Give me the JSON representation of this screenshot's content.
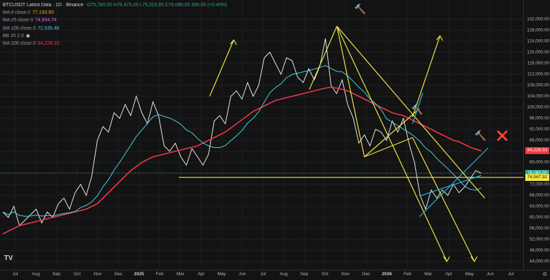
{
  "header": {
    "symbol": "BTCUSDT Latest Data",
    "interval": "1D",
    "exchange": "Binance",
    "open": "O75,780.00",
    "high": "H76,473.26",
    "low": "L75,323.65",
    "close": "C76,080.00",
    "change": "300.00 (+0.40%)"
  },
  "indicators": [
    {
      "name": "MA 8 close 0",
      "value": "77,193.90",
      "color": "#f7a12a"
    },
    {
      "name": "MA 25 close 0",
      "value": "74,934.74",
      "color": "#d46cf5"
    },
    {
      "name": "MA 100 close 0",
      "value": "72,535.48",
      "color": "#4fd1d9"
    },
    {
      "name": "BB 20 2 0",
      "value": "",
      "color": "#9598a1"
    },
    {
      "name": "MA 200 close 0",
      "value": "84,228.33",
      "color": "#f23645"
    }
  ],
  "price_axis": {
    "ticks": [
      "132,000.00",
      "128,000.00",
      "124,000.00",
      "120,000.00",
      "116,000.00",
      "112,000.00",
      "108,000.00",
      "104,000.00",
      "100,000.00",
      "96,000.00",
      "92,000.00",
      "88,000.00",
      "84,000.00",
      "80,000.00",
      "76,000.00",
      "72,000.00",
      "68,000.00",
      "64,000.00",
      "60,000.00",
      "56,000.00",
      "52,000.00",
      "48,000.00",
      "44,000.00"
    ],
    "tags": [
      {
        "label": "84,228.33",
        "value": 84228.33,
        "color": "#f23645"
      },
      {
        "label": "76,080.00",
        "value": 76080,
        "color": "#26a69a"
      },
      {
        "label": "74,547.92",
        "value": 74547.92,
        "color": "#f5e642",
        "text_color": "#131313"
      }
    ]
  },
  "time_axis": {
    "labels": [
      {
        "text": "Jul",
        "bold": false
      },
      {
        "text": "Aug",
        "bold": false
      },
      {
        "text": "Sep",
        "bold": false
      },
      {
        "text": "Oct",
        "bold": false
      },
      {
        "text": "Nov",
        "bold": false
      },
      {
        "text": "Dec",
        "bold": false
      },
      {
        "text": "2025",
        "bold": true
      },
      {
        "text": "Feb",
        "bold": false
      },
      {
        "text": "Mar",
        "bold": false
      },
      {
        "text": "Apr",
        "bold": false
      },
      {
        "text": "May",
        "bold": false
      },
      {
        "text": "Jun",
        "bold": false
      },
      {
        "text": "Jul",
        "bold": false
      },
      {
        "text": "Aug",
        "bold": false
      },
      {
        "text": "Sep",
        "bold": false
      },
      {
        "text": "Oct",
        "bold": false
      },
      {
        "text": "Nov",
        "bold": false
      },
      {
        "text": "Dec",
        "bold": false
      },
      {
        "text": "2026",
        "bold": true
      },
      {
        "text": "Feb",
        "bold": false
      },
      {
        "text": "Mar",
        "bold": false
      },
      {
        "text": "Apr",
        "bold": false
      },
      {
        "text": "May",
        "bold": false
      },
      {
        "text": "Jun",
        "bold": false
      },
      {
        "text": "Jul",
        "bold": false
      }
    ]
  },
  "annotations": {
    "hammer_icon": "hammer-icon",
    "cross_icon": "cross-mark-icon",
    "horizontal_support": 74547.92
  },
  "chart_data": {
    "type": "line",
    "ylim": [
      42000,
      134000
    ],
    "series": [
      {
        "name": "BTCUSDT",
        "color": "#e8e8e8",
        "values": [
          62000,
          60000,
          64000,
          57000,
          59000,
          61000,
          63000,
          58000,
          62000,
          60000,
          65000,
          67000,
          63000,
          69000,
          72000,
          68000,
          75000,
          88000,
          93000,
          91000,
          98000,
          96000,
          101000,
          97000,
          104000,
          98000,
          94000,
          102000,
          97000,
          86000,
          84000,
          87000,
          82000,
          79000,
          85000,
          82000,
          79000,
          83000,
          95000,
          97000,
          94000,
          104000,
          106000,
          103000,
          109000,
          104000,
          108000,
          118000,
          120000,
          116000,
          112000,
          118000,
          117000,
          111000,
          109000,
          114000,
          110000,
          115000,
          125000,
          108000,
          105000,
          110000,
          101000,
          96000,
          87000,
          90000,
          86000,
          92000,
          91000,
          88000,
          95000,
          91000,
          96000,
          87000,
          80000,
          68000,
          63000,
          70000,
          67000,
          70000,
          68000,
          72000,
          69000,
          71000,
          74000,
          77000,
          76080
        ]
      },
      {
        "name": "MA 200",
        "color": "#f23645",
        "values": [
          54000,
          55000,
          56000,
          57000,
          57500,
          58000,
          58500,
          59000,
          59500,
          60000,
          60500,
          61000,
          61500,
          62000,
          62500,
          63000,
          64000,
          65000,
          67000,
          69000,
          71000,
          73000,
          75000,
          77000,
          78500,
          80000,
          81000,
          82000,
          82500,
          83000,
          83500,
          84000,
          84500,
          85000,
          85500,
          86000,
          87000,
          88000,
          89000,
          90000,
          91000,
          92500,
          94000,
          95500,
          97000,
          98500,
          99500,
          100500,
          101500,
          102500,
          103000,
          103500,
          104000,
          104500,
          105000,
          105500,
          106000,
          106500,
          107000,
          107300,
          107000,
          106500,
          106000,
          105000,
          104000,
          103000,
          102000,
          101000,
          100000,
          99000,
          98000,
          97500,
          97000,
          96000,
          95000,
          94000,
          93000,
          92000,
          91000,
          90000,
          89000,
          88000,
          87500,
          86500,
          85500,
          84800,
          84228
        ]
      }
    ],
    "ma_values": {
      "MA 8": 77193.9,
      "MA 25": 74934.74,
      "MA 100": 72535.48,
      "MA 200": 84228.33
    }
  }
}
